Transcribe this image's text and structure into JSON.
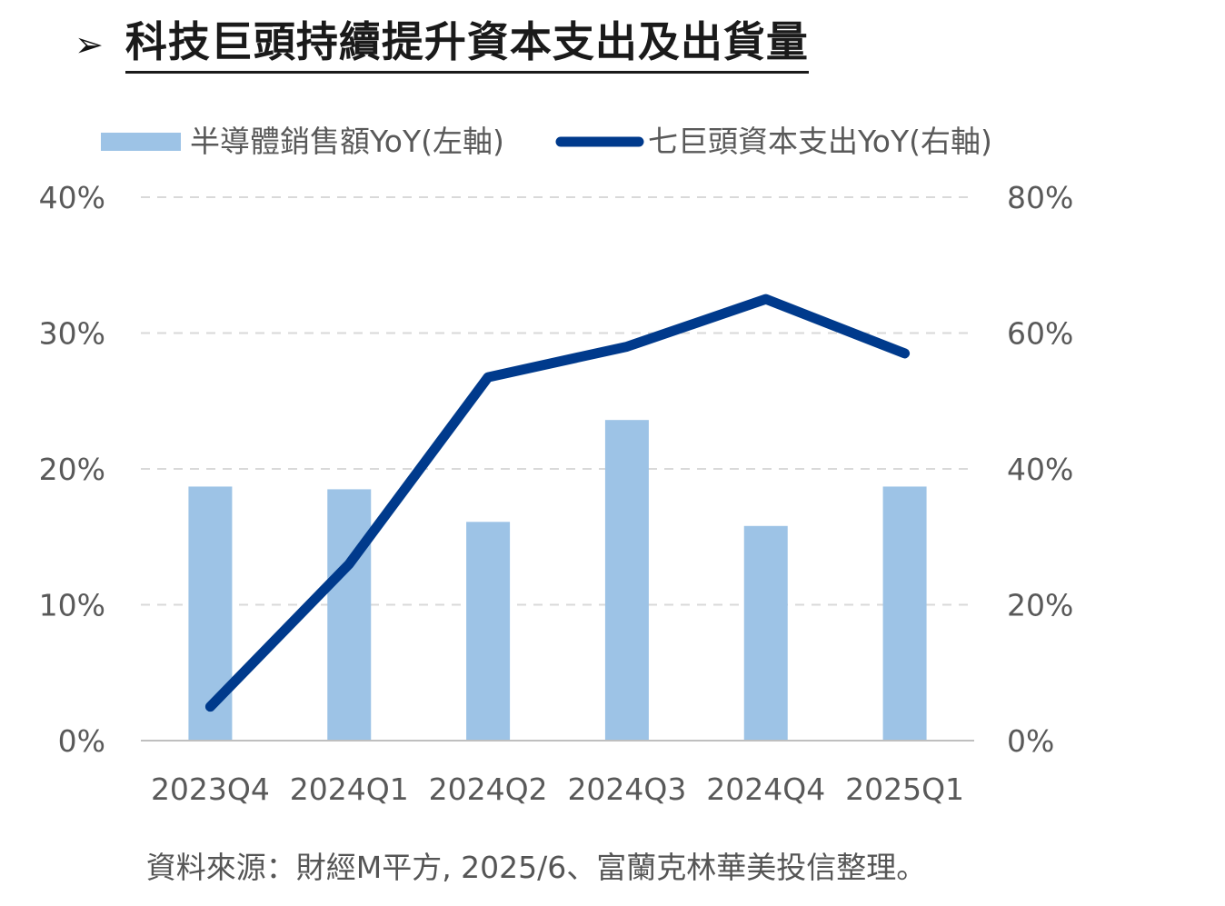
{
  "title": {
    "arrow": "➢",
    "text": "科技巨頭持續提升資本支出及出貨量"
  },
  "source": "資料來源：財經M平方, 2025/6、富蘭克林華美投信整理。",
  "colors": {
    "bar": "#9DC3E6",
    "line": "#003A8C",
    "grid": "#D9D9D9",
    "axis": "#BFBFBF"
  },
  "chart_data": {
    "type": "bar",
    "categories": [
      "2023Q4",
      "2024Q1",
      "2024Q2",
      "2024Q3",
      "2024Q4",
      "2025Q1"
    ],
    "series": [
      {
        "name": "半導體銷售額YoY(左軸)",
        "type": "bar",
        "axis": "left",
        "values": [
          18.7,
          18.5,
          16.1,
          23.6,
          15.8,
          18.7
        ]
      },
      {
        "name": "七巨頭資本支出YoY(右軸)",
        "type": "line",
        "axis": "right",
        "values": [
          5.0,
          26.0,
          53.5,
          58.0,
          65.0,
          57.0
        ]
      }
    ],
    "y_left": {
      "min": 0,
      "max": 40,
      "ticks": [
        "0%",
        "10%",
        "20%",
        "30%",
        "40%"
      ]
    },
    "y_right": {
      "min": 0,
      "max": 80,
      "ticks": [
        "0%",
        "20%",
        "40%",
        "60%",
        "80%"
      ]
    },
    "grid": "dashed horizontal",
    "legend": "top"
  }
}
